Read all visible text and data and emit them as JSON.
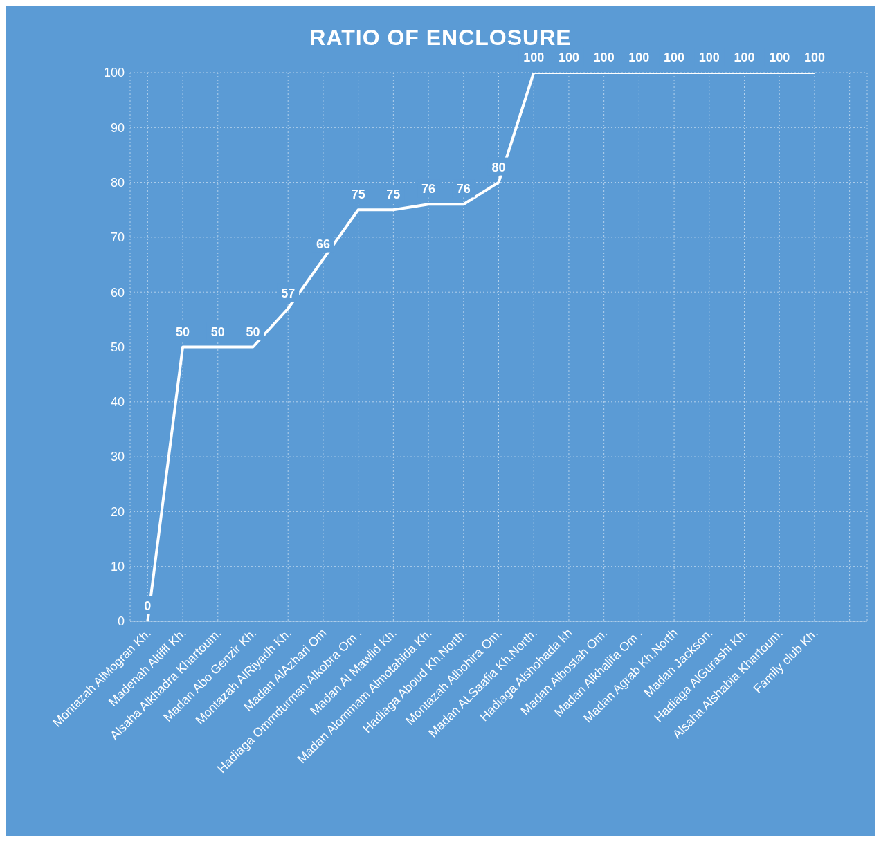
{
  "chart_data": {
    "type": "line",
    "title": "RATIO OF ENCLOSURE",
    "categories": [
      "Montazah AlMogran Kh.",
      "Madenah Altiffl Kh.",
      "Alsaha Alkhadra  Khartoum.",
      "Madan Abo Genzir Kh.",
      "Montazah AlRiyadh Kh.",
      "Madan AlAzhari Om",
      "Hadiaga Ommdurman Alkobra Om .",
      "Madan Al Mawlid Kh.",
      "Madan Alommam Almotahida Kh.",
      "Hadiaga Aboud Kh.North.",
      "Montazah Albohira Om.",
      "Madan ALSaafia Kh.North.",
      "Hadiaga Alshohada kh",
      "Madan Albostah Om.",
      "Madan Alkhalifa Om .",
      "Madan Agrab Kh.North",
      "Madan Jackson.",
      "Hadiaga AlGurashi  Kh.",
      "Alsaha Alshabia Khartoum.",
      "Family club Kh.",
      null
    ],
    "values": [
      0,
      50,
      50,
      50,
      57,
      66,
      75,
      75,
      76,
      76,
      80,
      100,
      100,
      100,
      100,
      100,
      100,
      100,
      100,
      100,
      null
    ],
    "color": "#ffffff",
    "ylim": [
      0,
      100
    ],
    "yticks": [
      0,
      10,
      20,
      30,
      40,
      50,
      60,
      70,
      80,
      90,
      100
    ],
    "grid": true,
    "data_labels": true,
    "marker": "none",
    "line_style": "solid"
  }
}
